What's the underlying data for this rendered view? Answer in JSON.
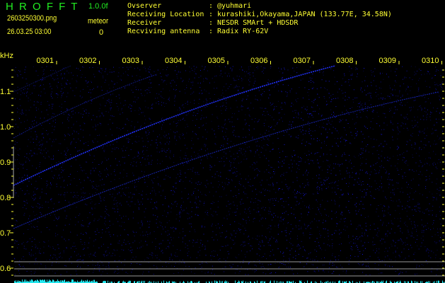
{
  "header": {
    "app_title": "H R O F F T",
    "version": "1.0.0f",
    "filename": "2603250300.png",
    "datetime": "26.03.25 03:00",
    "meteor_label": "meteor",
    "meteor_count": "0"
  },
  "info": [
    {
      "label": "Ovserver",
      "value": ": @yuhmari"
    },
    {
      "label": "Receiving Location",
      "value": ": kurashiki,Okayama,JAPAN (133.77E, 34.58N)"
    },
    {
      "label": "Receiver",
      "value": ": NESDR SMArt + HDSDR"
    },
    {
      "label": "Recviving antenna",
      "value": ": Radix RY-62V"
    }
  ],
  "colors": {
    "text": "#ffff33",
    "title": "#22ee22",
    "signal": "#2233ff",
    "spectrum": "#22e8f0",
    "background": "#000000"
  },
  "chart_data": {
    "type": "heatmap",
    "ylabel": "kHz",
    "ylim": [
      0.57,
      1.17
    ],
    "y_ticks": [
      "1.1",
      "1.0",
      "0.9",
      "0.8",
      "0.7",
      "0.6"
    ],
    "x_ticks": [
      "0301",
      "0302",
      "0303",
      "0304",
      "0305",
      "0306",
      "0307",
      "0308",
      "0309",
      "0310"
    ],
    "grid": false
  }
}
